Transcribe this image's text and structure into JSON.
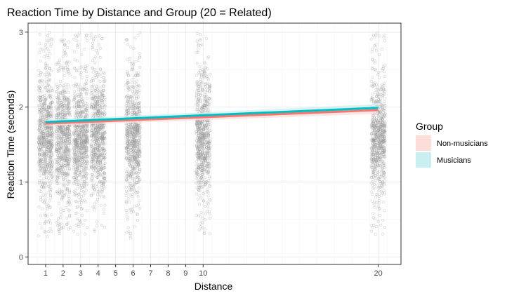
{
  "chart_data": {
    "type": "scatter",
    "title": "Reaction Time by Distance and Group (20 = Related)",
    "xlabel": "Distance",
    "ylabel": "Reaction Time (seconds)",
    "xlim": [
      0.0,
      21.3
    ],
    "ylim": [
      -0.1,
      3.12
    ],
    "x_ticks": [
      1,
      2,
      3,
      4,
      5,
      6,
      7,
      8,
      9,
      10,
      20
    ],
    "y_ticks": [
      0,
      1,
      2,
      3
    ],
    "grid": true,
    "legend": {
      "title": "Group",
      "position": "right"
    },
    "point_groups": [
      {
        "x": 1,
        "y_range": [
          0.25,
          3.0
        ],
        "dense_range": [
          1.2,
          2.0
        ]
      },
      {
        "x": 2,
        "y_range": [
          0.3,
          3.0
        ],
        "dense_range": [
          1.2,
          2.0
        ]
      },
      {
        "x": 3,
        "y_range": [
          0.3,
          3.0
        ],
        "dense_range": [
          1.2,
          2.0
        ]
      },
      {
        "x": 4,
        "y_range": [
          0.3,
          3.0
        ],
        "dense_range": [
          1.2,
          2.0
        ]
      },
      {
        "x": 6,
        "y_range": [
          0.25,
          3.0
        ],
        "dense_range": [
          1.2,
          2.0
        ]
      },
      {
        "x": 10,
        "y_range": [
          0.25,
          3.0
        ],
        "dense_range": [
          1.2,
          2.0
        ]
      },
      {
        "x": 20,
        "y_range": [
          0.3,
          3.0
        ],
        "dense_range": [
          1.2,
          2.0
        ]
      }
    ],
    "series": [
      {
        "name": "Non-musicians",
        "color": "#f8766d",
        "fill": "#fddcda",
        "x": [
          1,
          20
        ],
        "y": [
          1.78,
          1.96
        ],
        "band": [
          [
            1.75,
            1.81
          ],
          [
            1.91,
            2.01
          ]
        ]
      },
      {
        "name": "Musicians",
        "color": "#00bfc4",
        "fill": "#c9eff0",
        "x": [
          1,
          20
        ],
        "y": [
          1.8,
          1.99
        ],
        "band": [
          [
            1.77,
            1.83
          ],
          [
            1.94,
            2.04
          ]
        ]
      }
    ]
  }
}
